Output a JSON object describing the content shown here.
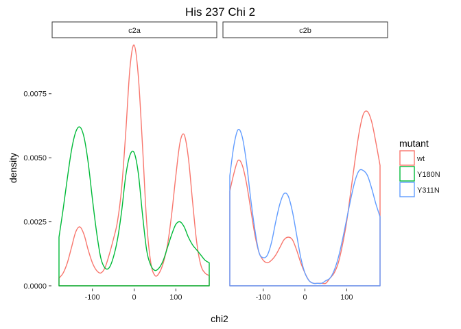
{
  "chart_data": {
    "type": "density",
    "title": "His 237 Chi 2",
    "xlabel": "chi2",
    "ylabel": "density",
    "xlim": [
      -180,
      180
    ],
    "ylim": [
      0,
      0.0095
    ],
    "x_ticks": [
      -100,
      0,
      100
    ],
    "x_tick_labels": [
      "-100",
      "0",
      "100"
    ],
    "y_ticks": [
      0,
      0.0025,
      0.005,
      0.0075
    ],
    "y_tick_labels": [
      "0.0000",
      "0.0025",
      "0.0050",
      "0.0075"
    ],
    "grid": false,
    "legend": {
      "title": "mutant",
      "position": "right",
      "entries": [
        {
          "label": "wt",
          "color": "#F8766D"
        },
        {
          "label": "Y180N",
          "color": "#00BA38"
        },
        {
          "label": "Y311N",
          "color": "#619CFF"
        }
      ]
    },
    "panels": [
      {
        "strip": "c2a",
        "series": [
          {
            "name": "wt",
            "color": "#F8766D",
            "x": [
              -180,
              -170,
              -160,
              -150,
              -140,
              -130,
              -120,
              -110,
              -100,
              -90,
              -80,
              -70,
              -60,
              -50,
              -40,
              -30,
              -20,
              -10,
              0,
              10,
              20,
              30,
              40,
              50,
              60,
              70,
              80,
              90,
              100,
              110,
              120,
              130,
              140,
              150,
              160,
              170,
              180
            ],
            "y": [
              0.0003,
              0.0005,
              0.0009,
              0.0015,
              0.0021,
              0.0023,
              0.002,
              0.0014,
              0.0009,
              0.0006,
              0.0005,
              0.0007,
              0.0012,
              0.0018,
              0.0025,
              0.0038,
              0.006,
              0.0085,
              0.0094,
              0.0082,
              0.0055,
              0.0025,
              0.0009,
              0.0004,
              0.0005,
              0.0009,
              0.0016,
              0.0028,
              0.0043,
              0.0056,
              0.0059,
              0.005,
              0.0033,
              0.0017,
              0.0008,
              0.0005,
              0.0004
            ]
          },
          {
            "name": "Y180N",
            "color": "#00BA38",
            "x": [
              -180,
              -170,
              -160,
              -150,
              -140,
              -130,
              -120,
              -110,
              -100,
              -90,
              -80,
              -70,
              -60,
              -50,
              -40,
              -30,
              -20,
              -10,
              0,
              10,
              20,
              30,
              40,
              50,
              60,
              70,
              80,
              90,
              100,
              110,
              120,
              130,
              140,
              150,
              160,
              170,
              180
            ],
            "y": [
              0.0019,
              0.003,
              0.0042,
              0.0053,
              0.006,
              0.0062,
              0.0058,
              0.0048,
              0.0034,
              0.0021,
              0.0011,
              0.0007,
              0.0007,
              0.0011,
              0.0018,
              0.0029,
              0.0043,
              0.0051,
              0.0052,
              0.0044,
              0.0028,
              0.0014,
              0.0008,
              0.0006,
              0.0007,
              0.001,
              0.0015,
              0.002,
              0.0024,
              0.0025,
              0.0023,
              0.0019,
              0.0016,
              0.0014,
              0.0012,
              0.001,
              0.0009
            ]
          }
        ]
      },
      {
        "strip": "c2b",
        "series": [
          {
            "name": "wt",
            "color": "#F8766D",
            "x": [
              -180,
              -170,
              -160,
              -150,
              -140,
              -130,
              -120,
              -110,
              -100,
              -90,
              -80,
              -70,
              -60,
              -50,
              -40,
              -30,
              -20,
              -10,
              0,
              10,
              20,
              30,
              40,
              50,
              60,
              70,
              80,
              90,
              100,
              110,
              120,
              130,
              140,
              150,
              160,
              170,
              180
            ],
            "y": [
              0.0037,
              0.0044,
              0.0049,
              0.0047,
              0.004,
              0.003,
              0.002,
              0.0013,
              0.001,
              0.0009,
              0.001,
              0.0012,
              0.0015,
              0.0018,
              0.0019,
              0.0018,
              0.0014,
              0.0009,
              0.0005,
              0.0002,
              0.0001,
              0.0001,
              0.0001,
              0.0001,
              0.0003,
              0.0005,
              0.0009,
              0.0016,
              0.0025,
              0.0037,
              0.0049,
              0.006,
              0.0067,
              0.0068,
              0.0064,
              0.0056,
              0.0047
            ]
          },
          {
            "name": "Y311N",
            "color": "#619CFF",
            "x": [
              -180,
              -170,
              -160,
              -150,
              -140,
              -130,
              -120,
              -110,
              -100,
              -90,
              -80,
              -70,
              -60,
              -50,
              -40,
              -30,
              -20,
              -10,
              0,
              10,
              20,
              30,
              40,
              50,
              60,
              70,
              80,
              90,
              100,
              110,
              120,
              130,
              140,
              150,
              160,
              170,
              180
            ],
            "y": [
              0.0043,
              0.0055,
              0.0061,
              0.0058,
              0.0048,
              0.0034,
              0.0022,
              0.0013,
              0.0011,
              0.0012,
              0.0017,
              0.0025,
              0.0032,
              0.0036,
              0.0035,
              0.0029,
              0.002,
              0.0011,
              0.0005,
              0.0002,
              0.0001,
              0.0001,
              0.0001,
              0.0002,
              0.0003,
              0.0006,
              0.0011,
              0.0018,
              0.0026,
              0.0034,
              0.0041,
              0.0045,
              0.0045,
              0.0043,
              0.0038,
              0.0032,
              0.0027
            ]
          }
        ]
      }
    ]
  }
}
